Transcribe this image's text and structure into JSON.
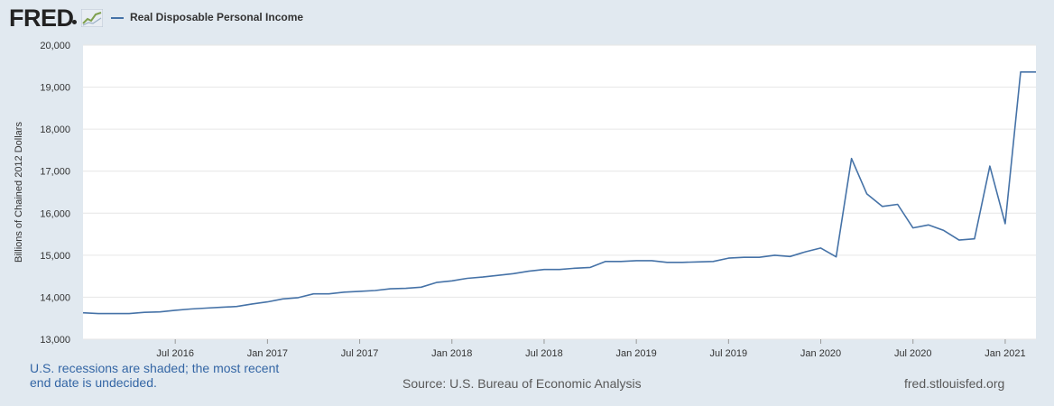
{
  "header": {
    "logo_text": "FRED",
    "series_label": "Real Disposable Personal Income"
  },
  "footer": {
    "recession_note": "U.S. recessions are shaded; the most recent end date is undecided.",
    "source": "Source: U.S. Bureau of Economic Analysis",
    "site": "fred.stlouisfed.org"
  },
  "colors": {
    "line": "#4572a7",
    "background": "#e1e9f0",
    "plot_area": "#ffffff",
    "grid": "#e6e6e6"
  },
  "chart_data": {
    "type": "line",
    "title": "",
    "ylabel": "Billions of Chained 2012 Dollars",
    "xlabel": "",
    "ylim": [
      13000,
      20000
    ],
    "yticks": [
      13000,
      14000,
      15000,
      16000,
      17000,
      18000,
      19000,
      20000
    ],
    "ytick_labels": [
      "13,000",
      "14,000",
      "15,000",
      "16,000",
      "17,000",
      "18,000",
      "19,000",
      "20,000"
    ],
    "xlim": [
      "2016-01",
      "2021-03"
    ],
    "xticks": [
      "2016-07",
      "2017-01",
      "2017-07",
      "2018-01",
      "2018-07",
      "2019-01",
      "2019-07",
      "2020-01",
      "2020-07",
      "2021-01"
    ],
    "xtick_labels": [
      "Jul 2016",
      "Jan 2017",
      "Jul 2017",
      "Jan 2018",
      "Jul 2018",
      "Jan 2019",
      "Jul 2019",
      "Jan 2020",
      "Jul 2020",
      "Jan 2021"
    ],
    "grid": true,
    "series": [
      {
        "name": "Real Disposable Personal Income",
        "x": [
          "2016-01",
          "2016-02",
          "2016-03",
          "2016-04",
          "2016-05",
          "2016-06",
          "2016-07",
          "2016-08",
          "2016-09",
          "2016-10",
          "2016-11",
          "2016-12",
          "2017-01",
          "2017-02",
          "2017-03",
          "2017-04",
          "2017-05",
          "2017-06",
          "2017-07",
          "2017-08",
          "2017-09",
          "2017-10",
          "2017-11",
          "2017-12",
          "2018-01",
          "2018-02",
          "2018-03",
          "2018-04",
          "2018-05",
          "2018-06",
          "2018-07",
          "2018-08",
          "2018-09",
          "2018-10",
          "2018-11",
          "2018-12",
          "2019-01",
          "2019-02",
          "2019-03",
          "2019-04",
          "2019-05",
          "2019-06",
          "2019-07",
          "2019-08",
          "2019-09",
          "2019-10",
          "2019-11",
          "2019-12",
          "2020-01",
          "2020-02",
          "2020-03",
          "2020-04",
          "2020-05",
          "2020-06",
          "2020-07",
          "2020-08",
          "2020-09",
          "2020-10",
          "2020-11",
          "2020-12",
          "2021-01",
          "2021-02",
          "2021-03"
        ],
        "values": [
          13630,
          13610,
          13610,
          13610,
          13640,
          13650,
          13690,
          13720,
          13740,
          13760,
          13780,
          13840,
          13890,
          13960,
          13990,
          14080,
          14080,
          14120,
          14140,
          14160,
          14200,
          14210,
          14240,
          14350,
          14390,
          14450,
          14480,
          14520,
          14560,
          14620,
          14660,
          14660,
          14690,
          14710,
          14850,
          14850,
          14870,
          14870,
          14830,
          14830,
          14840,
          14850,
          14930,
          14950,
          14950,
          15000,
          14970,
          15080,
          15170,
          14960,
          17300,
          16460,
          16160,
          16210,
          15650,
          15720,
          15590,
          15360,
          15390,
          17120,
          15750,
          19360,
          19360
        ]
      }
    ]
  }
}
